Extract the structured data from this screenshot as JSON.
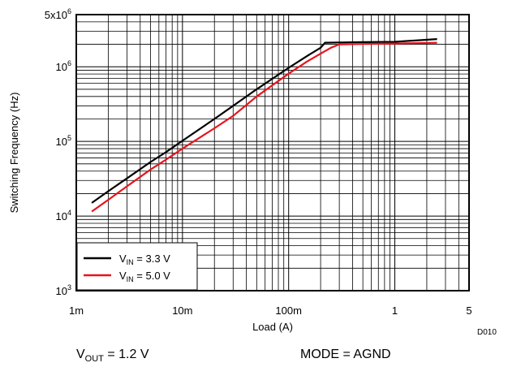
{
  "chart_data": {
    "type": "line",
    "xlabel": "Load (A)",
    "ylabel": "Switching Frequency (Hz)",
    "x_scale": "log",
    "y_scale": "log",
    "xlim": [
      0.001,
      5
    ],
    "ylim": [
      1000,
      5000000
    ],
    "grid": true,
    "legend_position": "bottom-left",
    "x_ticks": [
      {
        "value": 0.001,
        "label": "1m"
      },
      {
        "value": 0.01,
        "label": "10m"
      },
      {
        "value": 0.1,
        "label": "100m"
      },
      {
        "value": 1,
        "label": "1"
      },
      {
        "value": 5,
        "label": "5"
      }
    ],
    "y_ticks": [
      {
        "value": 1000,
        "base": "10",
        "exp": "3"
      },
      {
        "value": 10000,
        "base": "10",
        "exp": "4"
      },
      {
        "value": 100000,
        "base": "10",
        "exp": "5"
      },
      {
        "value": 1000000,
        "base": "10",
        "exp": "6"
      },
      {
        "value": 5000000,
        "base": "5x10",
        "exp": "6"
      }
    ],
    "series": [
      {
        "name": "V_IN = 3.3 V",
        "legend_main": "V",
        "legend_sub": "IN",
        "legend_rest": " = 3.3 V",
        "color": "#000000",
        "x": [
          0.0014,
          0.002,
          0.003,
          0.005,
          0.007,
          0.01,
          0.02,
          0.03,
          0.05,
          0.1,
          0.15,
          0.2,
          0.22,
          0.3,
          0.5,
          1,
          2.5
        ],
        "y": [
          15000,
          21500,
          32000,
          53000,
          72000,
          102000,
          200000,
          300000,
          500000,
          970000,
          1400000,
          1800000,
          2100000,
          2120000,
          2140000,
          2160000,
          2350000
        ]
      },
      {
        "name": "V_IN = 5.0 V",
        "legend_main": "V",
        "legend_sub": "IN",
        "legend_rest": " = 5.0 V",
        "color": "#e8141c",
        "x": [
          0.0014,
          0.002,
          0.003,
          0.005,
          0.007,
          0.01,
          0.02,
          0.03,
          0.05,
          0.1,
          0.15,
          0.2,
          0.25,
          0.3,
          0.5,
          1,
          2.5
        ],
        "y": [
          11500,
          16500,
          25000,
          42000,
          57000,
          80000,
          150000,
          220000,
          400000,
          810000,
          1180000,
          1500000,
          1800000,
          2000000,
          2020000,
          2050000,
          2100000
        ]
      }
    ]
  },
  "watermark": "D010",
  "captions": {
    "left_main": "V",
    "left_sub": "OUT",
    "left_rest": " = 1.2 V",
    "right": "MODE = AGND"
  }
}
